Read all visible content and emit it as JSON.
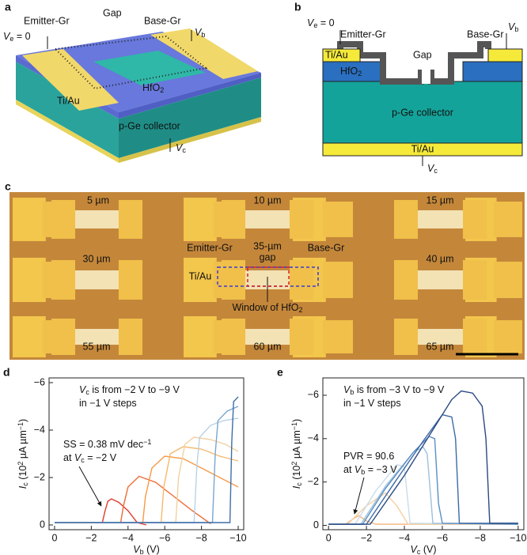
{
  "panel_a": {
    "label": "a",
    "emitter": "Emitter-Gr",
    "gap": "Gap",
    "base": "Base-Gr",
    "ve": [
      {
        "t": "V",
        "s": "italic"
      },
      {
        "t": "e",
        "s": "sub"
      },
      {
        "t": " = 0"
      }
    ],
    "vb": [
      {
        "t": "V",
        "s": "italic"
      },
      {
        "t": "b",
        "s": "sub"
      }
    ],
    "tiau": "Ti/Au",
    "hfo2": [
      {
        "t": "HfO"
      },
      {
        "t": "2",
        "s": "sub"
      }
    ],
    "collector": "p-Ge collector",
    "vc": [
      {
        "t": "V",
        "s": "italic"
      },
      {
        "t": "c",
        "s": "sub"
      }
    ]
  },
  "panel_b": {
    "label": "b",
    "ve": [
      {
        "t": "V",
        "s": "italic"
      },
      {
        "t": "e",
        "s": "sub"
      },
      {
        "t": " = 0"
      }
    ],
    "emitter": "Emitter-Gr",
    "gap": "Gap",
    "base": "Base-Gr",
    "vb": [
      {
        "t": "V",
        "s": "italic"
      },
      {
        "t": "b",
        "s": "sub"
      }
    ],
    "tiau_top": "Ti/Au",
    "hfo2": [
      {
        "t": "HfO"
      },
      {
        "t": "2",
        "s": "sub"
      }
    ],
    "collector": "p-Ge collector",
    "tiau_bottom": "Ti/Au",
    "vc": [
      {
        "t": "V",
        "s": "italic"
      },
      {
        "t": "c",
        "s": "sub"
      }
    ]
  },
  "panel_c": {
    "label": "c",
    "widths": [
      "5 µm",
      "10 µm",
      "15 µm",
      "30 µm",
      "40 µm",
      "55 µm",
      "60 µm",
      "65 µm"
    ],
    "gap_lines": [
      "35-µm",
      "gap"
    ],
    "emitter": "Emitter-Gr",
    "base": "Base-Gr",
    "tiau": "Ti/Au",
    "window": [
      {
        "t": "Window of HfO"
      },
      {
        "t": "2",
        "s": "sub"
      }
    ]
  },
  "chart_data": [
    {
      "type": "line",
      "panel_label": "d",
      "xlabel": [
        {
          "t": "V",
          "s": "italic"
        },
        {
          "t": "b",
          "s": "sub"
        },
        {
          "t": " (V)"
        }
      ],
      "ylabel": [
        {
          "t": "I",
          "s": "italic"
        },
        {
          "t": "c",
          "s": "sub"
        },
        {
          "t": " (10"
        },
        {
          "t": "2",
          "s": "sup"
        },
        {
          "t": " µA µm"
        },
        {
          "t": "−1",
          "s": "sup"
        },
        {
          "t": ")"
        }
      ],
      "xlim": [
        0.3,
        -10.3
      ],
      "ylim": [
        0.2,
        -6.2
      ],
      "xticks": [
        0,
        {
          "value": -2,
          "label": "−2"
        },
        {
          "value": -4,
          "label": "−4"
        },
        {
          "value": -6,
          "label": "−6"
        },
        {
          "value": -8,
          "label": "−8"
        },
        {
          "value": -10,
          "label": "−10"
        }
      ],
      "yticks": [
        0,
        {
          "value": -2,
          "label": "−2"
        },
        {
          "value": -4,
          "label": "−4"
        },
        {
          "value": -6,
          "label": "−6"
        }
      ],
      "annotations": [
        [
          {
            "t": "V",
            "s": "italic"
          },
          {
            "t": "c",
            "s": "sub"
          },
          {
            "t": " is from −2 V to −9 V"
          }
        ],
        [
          {
            "t": "in −1 V steps"
          }
        ],
        [
          {
            "t": "SS = 0.38 mV dec"
          },
          {
            "t": "−1",
            "s": "sup"
          }
        ],
        [
          {
            "t": "at "
          },
          {
            "t": "V",
            "s": "italic"
          },
          {
            "t": "c",
            "s": "sub"
          },
          {
            "t": " = −2 V"
          }
        ]
      ],
      "series": [
        {
          "color": "#e03a2c",
          "x": [
            0,
            -1,
            -2,
            -2.6,
            -2.75,
            -2.9,
            -3.1,
            -3.5,
            -4,
            -4.5,
            -5
          ],
          "values": [
            -0.1,
            -0.1,
            -0.1,
            -0.1,
            -0.6,
            -1.0,
            -1.1,
            -0.95,
            -0.6,
            -0.1,
            0
          ]
        },
        {
          "color": "#f06a34",
          "x": [
            0,
            -2,
            -3.6,
            -3.75,
            -4,
            -4.6,
            -5.5,
            -6.5,
            -7.5,
            -8.5
          ],
          "values": [
            -0.1,
            -0.1,
            -0.1,
            -0.8,
            -1.6,
            -2.05,
            -1.8,
            -1.2,
            -0.6,
            -0.05
          ]
        },
        {
          "color": "#f59a48",
          "x": [
            0,
            -3,
            -4.8,
            -4.95,
            -5.3,
            -6,
            -7,
            -8,
            -9,
            -10
          ],
          "values": [
            -0.1,
            -0.1,
            -0.1,
            -1.2,
            -2.4,
            -2.9,
            -2.8,
            -2.4,
            -2.0,
            -1.6
          ]
        },
        {
          "color": "#f6b86e",
          "x": [
            0,
            -4,
            -5.8,
            -5.95,
            -6.3,
            -7,
            -8,
            -9,
            -10
          ],
          "values": [
            -0.1,
            -0.1,
            -0.1,
            -1.6,
            -3.0,
            -3.3,
            -3.2,
            -2.9,
            -2.7
          ]
        },
        {
          "color": "#f2d0a0",
          "x": [
            0,
            -5,
            -6.6,
            -6.75,
            -7.1,
            -7.6,
            -8.5,
            -9.3,
            -10
          ],
          "values": [
            -0.1,
            -0.1,
            -0.1,
            -2.0,
            -3.4,
            -3.7,
            -3.6,
            -3.4,
            -3.1
          ]
        },
        {
          "color": "#b8d2e6",
          "x": [
            0,
            -6,
            -7.6,
            -7.75,
            -7.9,
            -8.5,
            -9.2,
            -10
          ],
          "values": [
            -0.1,
            -0.1,
            -0.1,
            -2.5,
            -3.7,
            -4.2,
            -4.4,
            -4.5
          ]
        },
        {
          "color": "#7aa6d0",
          "x": [
            0,
            -7,
            -8.6,
            -8.75,
            -8.9,
            -9.4,
            -10
          ],
          "values": [
            -0.1,
            -0.1,
            -0.1,
            -3.0,
            -4.4,
            -4.8,
            -5.0
          ]
        },
        {
          "color": "#3e6ea8",
          "x": [
            0,
            -8,
            -9.55,
            -9.65,
            -9.75,
            -10
          ],
          "values": [
            -0.1,
            -0.1,
            -0.1,
            -3.5,
            -5.2,
            -5.4
          ]
        }
      ]
    },
    {
      "type": "line",
      "panel_label": "e",
      "xlabel": [
        {
          "t": "V",
          "s": "italic"
        },
        {
          "t": "c",
          "s": "sub"
        },
        {
          "t": " (V)"
        }
      ],
      "ylabel": [
        {
          "t": "I",
          "s": "italic"
        },
        {
          "t": "c",
          "s": "sub"
        },
        {
          "t": " (10"
        },
        {
          "t": "2",
          "s": "sup"
        },
        {
          "t": " µA µm"
        },
        {
          "t": "−1",
          "s": "sup"
        },
        {
          "t": ")"
        }
      ],
      "xlim": [
        0.3,
        -10.3
      ],
      "ylim": [
        0.2,
        -6.8
      ],
      "xticks": [
        0,
        {
          "value": -2,
          "label": "−2"
        },
        {
          "value": -4,
          "label": "−4"
        },
        {
          "value": -6,
          "label": "−6"
        },
        {
          "value": -8,
          "label": "−8"
        },
        {
          "value": -10,
          "label": "−10"
        }
      ],
      "yticks": [
        0,
        {
          "value": -2,
          "label": "−2"
        },
        {
          "value": -4,
          "label": "−4"
        },
        {
          "value": -6,
          "label": "−6"
        }
      ],
      "annotations": [
        [
          {
            "t": "V",
            "s": "italic"
          },
          {
            "t": "b",
            "s": "sub"
          },
          {
            "t": " is from −3 V to −9 V"
          }
        ],
        [
          {
            "t": "in −1 V steps"
          }
        ],
        [
          {
            "t": "PVR = 90.6"
          }
        ],
        [
          {
            "t": "at "
          },
          {
            "t": "V",
            "s": "italic"
          },
          {
            "t": "b",
            "s": "sub"
          },
          {
            "t": " = −3 V"
          }
        ]
      ],
      "series": [
        {
          "color": "#f3b27a",
          "x": [
            0,
            -0.9,
            -1.3,
            -1.6,
            -2.0,
            -2.5,
            -10
          ],
          "values": [
            -0.05,
            -0.05,
            -0.3,
            -0.45,
            -0.2,
            -0.05,
            -0.05
          ]
        },
        {
          "color": "#f5d0a0",
          "x": [
            0,
            -1.0,
            -2.0,
            -3.0,
            -3.6,
            -4.2,
            -10
          ],
          "values": [
            -0.05,
            -0.05,
            -0.9,
            -1.5,
            -0.9,
            -0.05,
            -0.05
          ]
        },
        {
          "color": "#c8dcea",
          "x": [
            0,
            -1.4,
            -2.5,
            -3.6,
            -4.0,
            -4.3,
            -10
          ],
          "values": [
            -0.05,
            -0.05,
            -1.6,
            -2.8,
            -2.7,
            -0.1,
            -0.05
          ]
        },
        {
          "color": "#9cc0dc",
          "x": [
            0,
            -1.7,
            -3,
            -4.5,
            -5.0,
            -5.2,
            -5.4,
            -5.5,
            -10
          ],
          "values": [
            -0.05,
            -0.05,
            -1.8,
            -3.4,
            -3.6,
            -3.3,
            -1.2,
            -0.1,
            -0.05
          ]
        },
        {
          "color": "#5b8fc4",
          "x": [
            0,
            -1.8,
            -3,
            -4.5,
            -5.3,
            -5.6,
            -5.8,
            -6.0,
            -10
          ],
          "values": [
            -0.05,
            -0.05,
            -1.7,
            -3.4,
            -4.1,
            -4.0,
            -1.0,
            -0.1,
            -0.05
          ]
        },
        {
          "color": "#3c6aa8",
          "x": [
            0,
            -2.0,
            -3.5,
            -5.0,
            -6.0,
            -6.5,
            -6.7,
            -6.9,
            -10
          ],
          "values": [
            -0.05,
            -0.05,
            -2.0,
            -3.9,
            -5.1,
            -5.0,
            -4.0,
            -0.1,
            -0.1
          ]
        },
        {
          "color": "#2a4a80",
          "x": [
            0,
            -2.2,
            -4,
            -5.5,
            -6.5,
            -7.0,
            -7.6,
            -8.1,
            -8.3,
            -8.5,
            -10
          ],
          "values": [
            -0.05,
            -0.05,
            -2.3,
            -4.4,
            -5.8,
            -6.2,
            -6.1,
            -5.5,
            -4.0,
            -0.1,
            -0.1
          ]
        }
      ]
    }
  ]
}
